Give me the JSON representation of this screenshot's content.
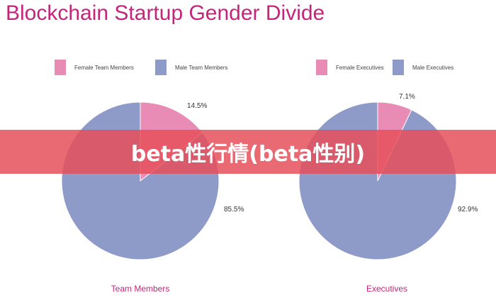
{
  "title": "Blockchain Startup Gender Divide",
  "banner_text": "beta性行情(beta性别)",
  "colors": {
    "female": "#e88bb5",
    "male": "#8e9bc9",
    "accent": "#c4257a"
  },
  "chart_data": [
    {
      "type": "pie",
      "title": "Team Members",
      "series": [
        {
          "name": "Female Team Members",
          "value": 14.5,
          "label": "14.5%"
        },
        {
          "name": "Male Team Members",
          "value": 85.5,
          "label": "85.5%"
        }
      ],
      "legend": "top"
    },
    {
      "type": "pie",
      "title": "Executives",
      "series": [
        {
          "name": "Female Executives",
          "value": 7.1,
          "label": "7.1%"
        },
        {
          "name": "Male Executives",
          "value": 92.9,
          "label": "92.9%"
        }
      ],
      "legend": "top"
    }
  ]
}
